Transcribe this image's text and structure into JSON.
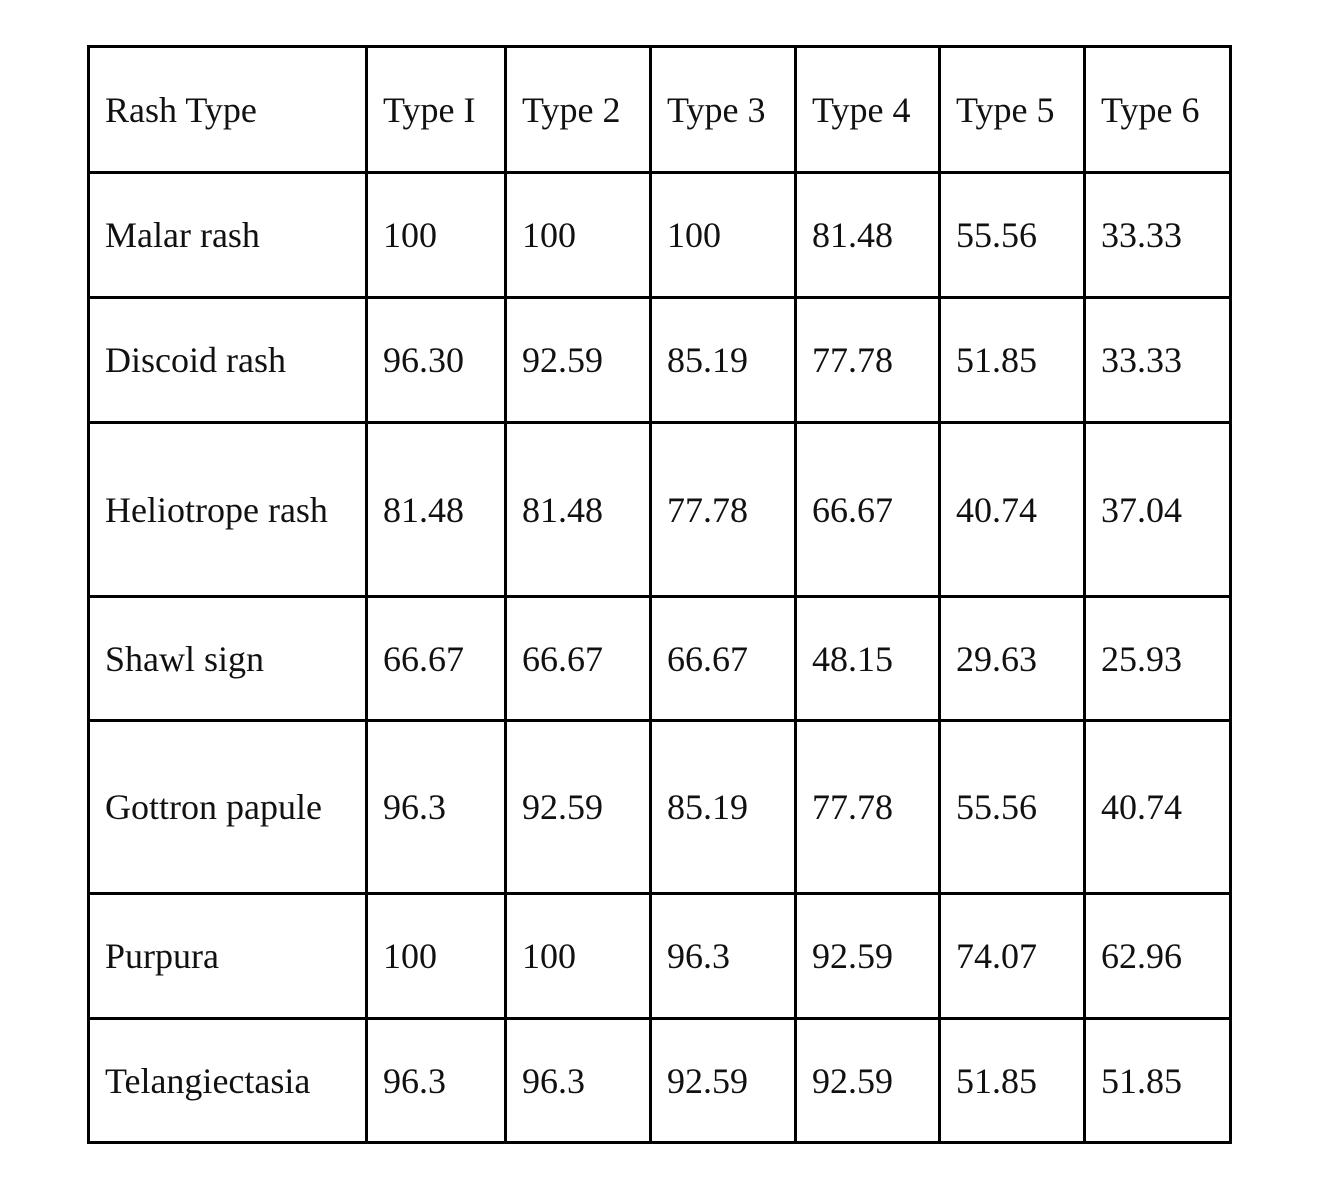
{
  "table": {
    "header": [
      "Rash Type",
      "Type I",
      "Type 2",
      "Type 3",
      "Type 4",
      "Type 5",
      "Type 6"
    ],
    "rows": [
      [
        "Malar rash",
        "100",
        "100",
        "100",
        "81.48",
        "55.56",
        "33.33"
      ],
      [
        "Discoid rash",
        "96.30",
        "92.59",
        "85.19",
        "77.78",
        "51.85",
        "33.33"
      ],
      [
        "Heliotrope rash",
        "81.48",
        "81.48",
        "77.78",
        "66.67",
        "40.74",
        "37.04"
      ],
      [
        "Shawl sign",
        "66.67",
        "66.67",
        "66.67",
        "48.15",
        "29.63",
        "25.93"
      ],
      [
        "Gottron papule",
        "96.3",
        "92.59",
        "85.19",
        "77.78",
        "55.56",
        "40.74"
      ],
      [
        "Purpura",
        "100",
        "100",
        "96.3",
        "92.59",
        "74.07",
        "62.96"
      ],
      [
        "Telangiectasia",
        "96.3",
        "96.3",
        "92.59",
        "92.59",
        "51.85",
        "51.85"
      ]
    ]
  }
}
